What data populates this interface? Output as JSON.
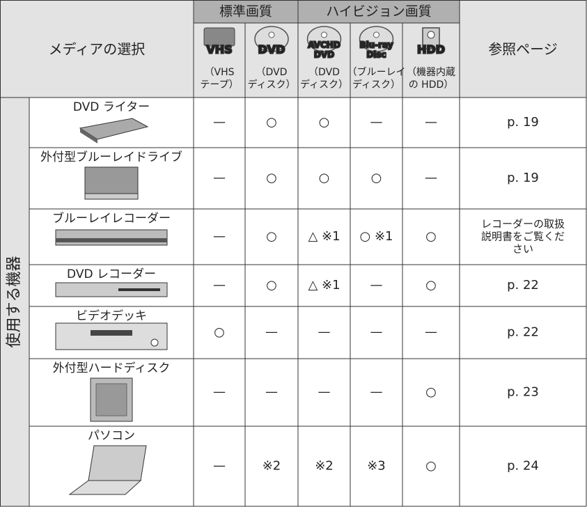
{
  "header": {
    "media_select": "メディアの選択",
    "standard": "標準画質",
    "hivision": "ハイビジョン画質",
    "reference": "参照ページ"
  },
  "media": [
    {
      "icon": [
        "VHS"
      ],
      "caption": [
        "（VHS",
        "テープ）"
      ]
    },
    {
      "icon": [
        "DVD"
      ],
      "caption": [
        "（DVD",
        "ディスク）"
      ]
    },
    {
      "icon": [
        "AVCHD",
        "DVD"
      ],
      "caption": [
        "（DVD",
        "ディスク）"
      ]
    },
    {
      "icon": [
        "Blu-ray",
        "Disc"
      ],
      "caption": [
        "（ブルーレイ",
        "ディスク）"
      ]
    },
    {
      "icon": [
        "HDD"
      ],
      "caption": [
        "（機器内蔵",
        "の HDD）"
      ]
    }
  ],
  "group_label": "使用する機器",
  "rows": [
    {
      "device": "DVD ライター",
      "cells": [
        "—",
        "○",
        "○",
        "—",
        "—"
      ],
      "reference": [
        "p. 19"
      ]
    },
    {
      "device": "外付型ブルーレイドライブ",
      "cells": [
        "—",
        "○",
        "○",
        "○",
        "—"
      ],
      "reference": [
        "p. 19"
      ]
    },
    {
      "device": "ブルーレイレコーダー",
      "cells": [
        "—",
        "○",
        "△ ※1",
        "○ ※1",
        "○"
      ],
      "reference": [
        "レコーダーの取扱",
        "説明書をご覧くだ",
        "さい"
      ]
    },
    {
      "device": "DVD レコーダー",
      "cells": [
        "—",
        "○",
        "△ ※1",
        "—",
        "○"
      ],
      "reference": [
        "p. 22"
      ]
    },
    {
      "device": "ビデオデッキ",
      "cells": [
        "○",
        "—",
        "—",
        "—",
        "—"
      ],
      "reference": [
        "p. 22"
      ]
    },
    {
      "device": "外付型ハードディスク",
      "cells": [
        "—",
        "—",
        "—",
        "—",
        "○"
      ],
      "reference": [
        "p. 23"
      ]
    },
    {
      "device": "パソコン",
      "cells": [
        "—",
        "※2",
        "※2",
        "※3",
        "○"
      ],
      "reference": [
        "p. 24"
      ]
    }
  ]
}
